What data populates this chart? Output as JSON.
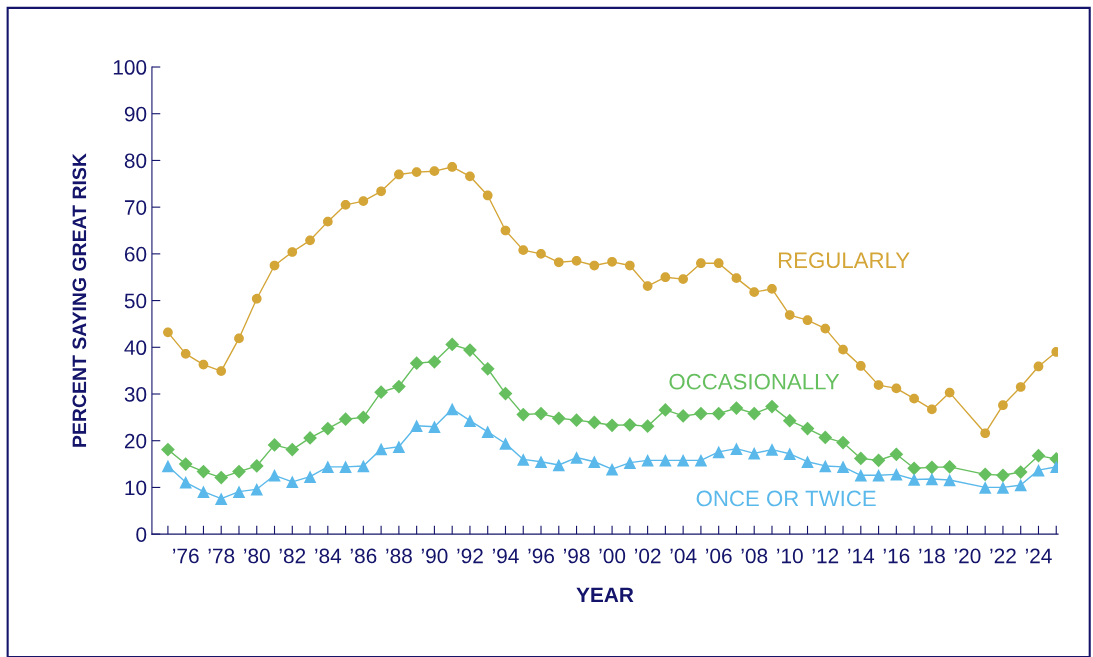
{
  "chart_data": {
    "type": "line",
    "xlabel": "YEAR",
    "ylabel": "PERCENT SAYING GREAT RISK",
    "categories": [
      null,
      "’76",
      null,
      "’78",
      null,
      "’80",
      null,
      "’82",
      null,
      "’84",
      null,
      "’86",
      null,
      "’88",
      null,
      "’90",
      null,
      "’92",
      null,
      "’94",
      null,
      "’96",
      null,
      "’98",
      null,
      "’00",
      null,
      "’02",
      null,
      "’04",
      null,
      "’06",
      null,
      "’08",
      null,
      "’10",
      null,
      "’12",
      null,
      "’14",
      null,
      "’16",
      null,
      "’18",
      null,
      "’20",
      null,
      "’22",
      null,
      "’24",
      null
    ],
    "series": [
      {
        "name": "REGULARLY",
        "color": "#d4a537",
        "marker": "circle",
        "values": [
          43.2,
          38.6,
          36.3,
          34.9,
          41.9,
          50.4,
          57.5,
          60.4,
          62.9,
          66.9,
          70.5,
          71.3,
          73.4,
          77.0,
          77.5,
          77.7,
          78.6,
          76.6,
          72.5,
          65.0,
          60.8,
          60.0,
          58.2,
          58.5,
          57.5,
          58.3,
          57.5,
          53.1,
          55.0,
          54.6,
          58.0,
          58.0,
          54.8,
          51.8,
          52.5,
          46.9,
          45.8,
          44.0,
          39.5,
          36.0,
          31.9,
          31.2,
          29.0,
          26.7,
          30.3,
          null,
          21.6,
          27.6,
          31.5,
          35.9,
          39.0
        ]
      },
      {
        "name": "OCCASIONALLY",
        "color": "#66bf5e",
        "marker": "diamond",
        "values": [
          18.1,
          15.0,
          13.4,
          12.1,
          13.4,
          14.6,
          19.1,
          18.1,
          20.6,
          22.6,
          24.6,
          25.0,
          30.4,
          31.6,
          36.6,
          36.9,
          40.6,
          39.4,
          35.4,
          30.1,
          25.6,
          25.8,
          24.8,
          24.4,
          23.9,
          23.3,
          23.4,
          23.1,
          26.6,
          25.3,
          25.8,
          25.8,
          27.0,
          25.8,
          27.3,
          24.3,
          22.6,
          20.7,
          19.6,
          16.2,
          15.8,
          17.1,
          14.1,
          14.3,
          14.4,
          null,
          12.8,
          12.6,
          13.3,
          16.8,
          16.1
        ]
      },
      {
        "name": "ONCE OR TWICE",
        "color": "#5ab9ea",
        "marker": "triangle",
        "values": [
          14.6,
          11.1,
          9.1,
          7.6,
          9.1,
          9.6,
          12.6,
          11.2,
          12.3,
          14.4,
          14.4,
          14.6,
          18.2,
          18.7,
          23.2,
          23.0,
          26.8,
          24.3,
          21.9,
          19.4,
          16.0,
          15.5,
          14.8,
          16.4,
          15.5,
          13.9,
          15.3,
          15.8,
          15.8,
          15.8,
          15.8,
          17.6,
          18.3,
          17.3,
          18.1,
          17.2,
          15.5,
          14.6,
          14.4,
          12.6,
          12.6,
          12.8,
          11.7,
          11.8,
          11.6,
          null,
          10.0,
          10.0,
          10.5,
          13.7,
          14.4
        ]
      }
    ],
    "ylim": [
      0,
      100
    ],
    "yticks": [
      0,
      10,
      20,
      30,
      40,
      50,
      60,
      70,
      80,
      90,
      100
    ],
    "grid": false,
    "legend": false,
    "line_style": "solid"
  }
}
